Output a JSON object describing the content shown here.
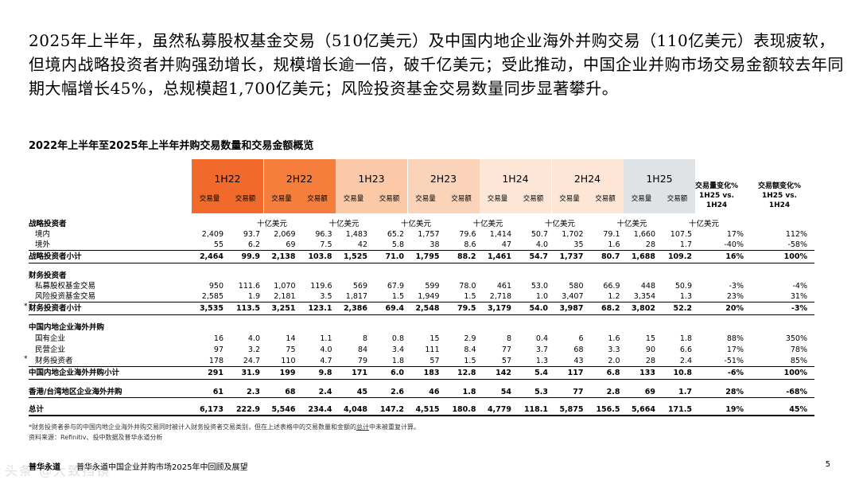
{
  "headline": {
    "text": "2025年上半年，虽然私募股权基金交易（510亿美元）及中国内地企业海外并购交易（110亿美元）表现疲软，但境内战略投资者并购强劲增长，规模增长逾一倍，破千亿美元；受此推动，中国企业并购市场交易金额较去年同期大幅增长45%，总规模超1,700亿美元；风险投资基金交易数量同步显著攀升。"
  },
  "table": {
    "title": "2022年上半年至2025年上半年并购交易数量和交易金额概览",
    "sub_count_label": "交易量",
    "sub_value_label": "交易额",
    "unit_label": "十亿美元",
    "periods": [
      {
        "name": "1H22",
        "color": "#f26a2b"
      },
      {
        "name": "2H22",
        "color": "#f57e3c"
      },
      {
        "name": "1H23",
        "color": "#fbc8a8"
      },
      {
        "name": "2H23",
        "color": "#fbd3b8"
      },
      {
        "name": "1H24",
        "color": "#fde6d6"
      },
      {
        "name": "2H24",
        "color": "#fde6d6"
      },
      {
        "name": "1H25",
        "color": "#dfe3e6"
      }
    ],
    "change_count_header": "交易量变化% 1H25 vs. 1H24",
    "change_value_header": "交易额变化% 1H25 vs. 1H24",
    "change_count_header_l1": "交易量变化%",
    "change_count_header_l2": "1H25 vs.",
    "change_count_header_l3": "1H24",
    "change_value_header_l1": "交易额变化%",
    "change_value_header_l2": "1H25 vs.",
    "change_value_header_l3": "1H24",
    "sections": {
      "strategic": "战略投资者",
      "financial": "财务投资者",
      "overseas": "中国内地企业海外并购"
    },
    "rows": [
      {
        "key": "domestic",
        "label": "境内",
        "values": [
          "2,409",
          "93.7",
          "2,069",
          "96.3",
          "1,483",
          "65.2",
          "1,757",
          "79.6",
          "1,414",
          "50.7",
          "1,702",
          "79.1",
          "1,660",
          "107.5"
        ],
        "chg": [
          "17%",
          "112%"
        ]
      },
      {
        "key": "abroad",
        "label": "境外",
        "values": [
          "55",
          "6.2",
          "69",
          "7.5",
          "42",
          "5.8",
          "38",
          "8.6",
          "47",
          "4.0",
          "35",
          "1.6",
          "28",
          "1.7"
        ],
        "chg": [
          "-40%",
          "-58%"
        ]
      },
      {
        "key": "strategic_subtotal",
        "label": "战略投资者小计",
        "values": [
          "2,464",
          "99.9",
          "2,138",
          "103.8",
          "1,525",
          "71.0",
          "1,795",
          "88.2",
          "1,461",
          "54.7",
          "1,737",
          "80.7",
          "1,688",
          "109.2"
        ],
        "chg": [
          "16%",
          "100%"
        ]
      },
      {
        "key": "pe",
        "label": "私募股权基金交易",
        "values": [
          "950",
          "111.6",
          "1,070",
          "119.6",
          "569",
          "67.9",
          "599",
          "78.0",
          "461",
          "53.0",
          "580",
          "66.9",
          "448",
          "50.9"
        ],
        "chg": [
          "-3%",
          "-4%"
        ]
      },
      {
        "key": "vc",
        "label": "风险投资基金交易",
        "values": [
          "2,585",
          "1.9",
          "2,181",
          "3.5",
          "1,817",
          "1.5",
          "1,949",
          "1.5",
          "2,718",
          "1.0",
          "3,407",
          "1.2",
          "3,354",
          "1.3"
        ],
        "chg": [
          "23%",
          "31%"
        ]
      },
      {
        "key": "financial_subtotal",
        "label": "财务投资者小计",
        "values": [
          "3,535",
          "113.5",
          "3,251",
          "123.1",
          "2,386",
          "69.4",
          "2,548",
          "79.5",
          "3,179",
          "54.0",
          "3,987",
          "68.2",
          "3,802",
          "52.2"
        ],
        "chg": [
          "20%",
          "-3%"
        ]
      },
      {
        "key": "soe",
        "label": "国有企业",
        "values": [
          "16",
          "4.0",
          "14",
          "1.1",
          "8",
          "0.8",
          "15",
          "2.9",
          "8",
          "0.4",
          "6",
          "1.6",
          "15",
          "1.8"
        ],
        "chg": [
          "88%",
          "350%"
        ]
      },
      {
        "key": "private",
        "label": "民营企业",
        "values": [
          "97",
          "3.2",
          "75",
          "4.0",
          "84",
          "3.4",
          "111",
          "8.4",
          "77",
          "3.7",
          "68",
          "3.3",
          "90",
          "6.6"
        ],
        "chg": [
          "17%",
          "78%"
        ]
      },
      {
        "key": "fin_inv",
        "label": "财务投资者",
        "values": [
          "178",
          "24.7",
          "110",
          "4.7",
          "79",
          "1.8",
          "57",
          "1.5",
          "57",
          "1.3",
          "43",
          "2.0",
          "28",
          "2.4"
        ],
        "chg": [
          "-51%",
          "85%"
        ]
      },
      {
        "key": "overseas_subtotal",
        "label": "中国内地企业海外并购小计",
        "values": [
          "291",
          "31.9",
          "199",
          "9.8",
          "171",
          "6.0",
          "183",
          "12.8",
          "142",
          "5.4",
          "117",
          "6.8",
          "133",
          "10.8"
        ],
        "chg": [
          "-6%",
          "100%"
        ]
      },
      {
        "key": "hk_tw",
        "label": "香港/台湾地区企业海外并购",
        "values": [
          "61",
          "2.3",
          "68",
          "2.4",
          "45",
          "2.6",
          "46",
          "1.8",
          "54",
          "5.3",
          "77",
          "2.8",
          "69",
          "1.7"
        ],
        "chg": [
          "28%",
          "-68%"
        ]
      },
      {
        "key": "total",
        "label": "总计",
        "values": [
          "6,173",
          "222.9",
          "5,546",
          "234.4",
          "4,048",
          "147.2",
          "4,515",
          "180.8",
          "4,779",
          "118.1",
          "5,875",
          "156.5",
          "5,664",
          "171.5"
        ],
        "chg": [
          "19%",
          "45%"
        ]
      }
    ],
    "star": "*"
  },
  "footnotes": {
    "note1_a": "*财务投资者参与的中国内地企业海外并购交易同时被计入财务投资者交易类别，但在上述表格中的交易数量和金额的",
    "note1_u": "总计",
    "note1_b": "中未被重复计算。",
    "note2": "资料来源：Refinitiv、投中数据及普华永道分析"
  },
  "footer": {
    "brand": "普华永道",
    "text": "普华永道中国企业并购市场2025年中回顾及展望",
    "page": "5",
    "watermark": "头条 @大致挡镜"
  }
}
